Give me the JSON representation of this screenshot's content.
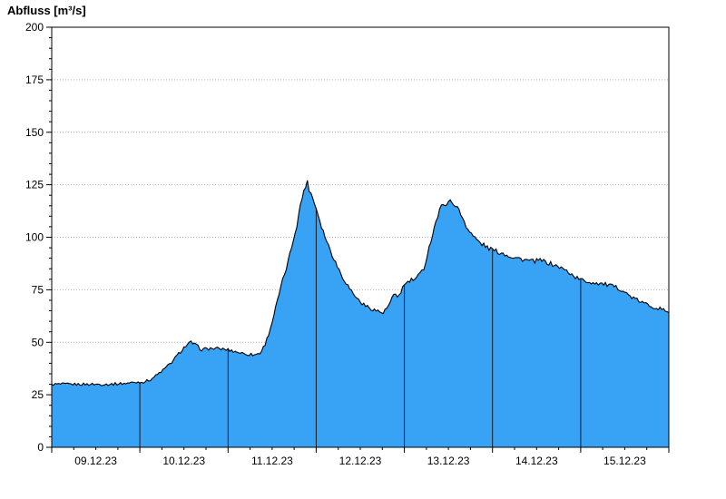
{
  "chart_data": {
    "type": "area",
    "title": "Abfluss [m³/s]",
    "ylabel": "Abfluss [m³/s]",
    "unit": "m³/s",
    "ylim": [
      0,
      200
    ],
    "ytick_step": 25,
    "yminor_step": 5,
    "ytick_labels": [
      "0",
      "25",
      "50",
      "75",
      "100",
      "125",
      "150",
      "175",
      "200"
    ],
    "x_day_labels": [
      "09.12.23",
      "10.12.23",
      "11.12.23",
      "12.12.23",
      "13.12.23",
      "14.12.23",
      "15.12.23"
    ],
    "x_range_days": [
      0,
      7
    ],
    "grid": "horizontal-dotted",
    "legend": "none",
    "day_divider_lines_at": [
      1,
      2,
      3,
      4,
      5,
      6
    ],
    "jitter_amplitude": 1.0,
    "colors": {
      "fill": "#38A3F5",
      "line": "#000000",
      "grid": "#b0b0b0",
      "frame": "#000000",
      "day_divider": "#1a1a1a",
      "background": "#ffffff",
      "text": "#000000"
    },
    "series": [
      {
        "name": "Abfluss",
        "points": [
          [
            0.0,
            30
          ],
          [
            0.24,
            30
          ],
          [
            0.44,
            30
          ],
          [
            0.65,
            30
          ],
          [
            0.85,
            30.5
          ],
          [
            0.96,
            31
          ],
          [
            1.03,
            31
          ],
          [
            1.11,
            32
          ],
          [
            1.18,
            34
          ],
          [
            1.27,
            37
          ],
          [
            1.35,
            40
          ],
          [
            1.43,
            44
          ],
          [
            1.5,
            47.5
          ],
          [
            1.58,
            50
          ],
          [
            1.64,
            48.5
          ],
          [
            1.7,
            46.5
          ],
          [
            1.78,
            47
          ],
          [
            1.88,
            47
          ],
          [
            1.99,
            46.5
          ],
          [
            2.09,
            45.5
          ],
          [
            2.19,
            44.5
          ],
          [
            2.3,
            44
          ],
          [
            2.37,
            45
          ],
          [
            2.43,
            50
          ],
          [
            2.49,
            58
          ],
          [
            2.55,
            68
          ],
          [
            2.61,
            78
          ],
          [
            2.68,
            88
          ],
          [
            2.73,
            97
          ],
          [
            2.78,
            106
          ],
          [
            2.83,
            117
          ],
          [
            2.87,
            124
          ],
          [
            2.9,
            126
          ],
          [
            2.91,
            124
          ],
          [
            2.95,
            120
          ],
          [
            3.0,
            114
          ],
          [
            3.07,
            104
          ],
          [
            3.14,
            96
          ],
          [
            3.22,
            88
          ],
          [
            3.3,
            81
          ],
          [
            3.39,
            75
          ],
          [
            3.47,
            70.5
          ],
          [
            3.55,
            67.5
          ],
          [
            3.63,
            66
          ],
          [
            3.72,
            64.5
          ],
          [
            3.76,
            64
          ],
          [
            3.79,
            65.5
          ],
          [
            3.83,
            68
          ],
          [
            3.86,
            71
          ],
          [
            3.89,
            72.5
          ],
          [
            3.92,
            71.5
          ],
          [
            3.96,
            74
          ],
          [
            3.99,
            77
          ],
          [
            4.07,
            79.5
          ],
          [
            4.12,
            80
          ],
          [
            4.15,
            81
          ],
          [
            4.22,
            85
          ],
          [
            4.28,
            95
          ],
          [
            4.34,
            105
          ],
          [
            4.41,
            114
          ],
          [
            4.46,
            116
          ],
          [
            4.5,
            117
          ],
          [
            4.55,
            116.5
          ],
          [
            4.58,
            115.5
          ],
          [
            4.64,
            111
          ],
          [
            4.72,
            104
          ],
          [
            4.79,
            100
          ],
          [
            4.87,
            97
          ],
          [
            4.95,
            95
          ],
          [
            5.03,
            93.5
          ],
          [
            5.14,
            92
          ],
          [
            5.24,
            90.5
          ],
          [
            5.34,
            89.5
          ],
          [
            5.45,
            88.5
          ],
          [
            5.55,
            89
          ],
          [
            5.65,
            87.5
          ],
          [
            5.75,
            86
          ],
          [
            5.86,
            83.5
          ],
          [
            5.94,
            81
          ],
          [
            6.02,
            79.5
          ],
          [
            6.12,
            78.5
          ],
          [
            6.23,
            78
          ],
          [
            6.33,
            77
          ],
          [
            6.41,
            76
          ],
          [
            6.47,
            75
          ],
          [
            6.54,
            72.5
          ],
          [
            6.62,
            70.5
          ],
          [
            6.72,
            68.5
          ],
          [
            6.82,
            67
          ],
          [
            6.93,
            65.5
          ],
          [
            7.0,
            64.5
          ]
        ]
      }
    ]
  }
}
